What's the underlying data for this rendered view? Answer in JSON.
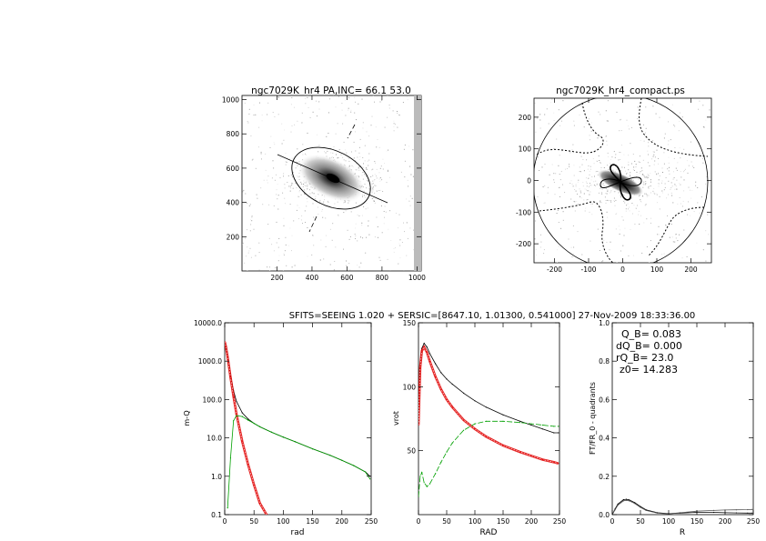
{
  "header": {
    "info_line": "SFITS=SEEING 1.020 + SERSIC=[8647.10, 1.01300, 0.541000]  27-Nov-2009 18:33:36.00"
  },
  "colors": {
    "black": "#000000",
    "red": "#e00000",
    "green": "#00a000",
    "grey": "#555555"
  },
  "chart_data": [
    {
      "id": "image",
      "type": "heatmap",
      "title": "ngc7029K_hr4 PA,INC= 66.1 53.0",
      "x_ticks": [
        "200",
        "400",
        "600",
        "800",
        "1000"
      ],
      "y_ticks": [
        "200",
        "400",
        "600",
        "800",
        "1000"
      ],
      "xlim": [
        0,
        1024
      ],
      "ylim": [
        0,
        1024
      ],
      "ellipse": {
        "center": [
          512,
          540
        ],
        "pa_deg": 66.1,
        "inc_deg": 53.0
      }
    },
    {
      "id": "compact",
      "type": "heatmap",
      "title": "ngc7029K_hr4_compact.ps",
      "x_ticks": [
        "-200",
        "-100",
        "0",
        "100",
        "200"
      ],
      "y_ticks": [
        "-200",
        "-100",
        "0",
        "100",
        "200"
      ],
      "xlim": [
        -260,
        260
      ],
      "ylim": [
        -260,
        260
      ],
      "circle_radius": 250
    },
    {
      "id": "mass",
      "type": "line",
      "xlabel": "rad",
      "ylabel": "m-Q",
      "xlim": [
        0,
        250
      ],
      "ylim": [
        0.1,
        10000
      ],
      "yscale": "log",
      "x_ticks": [
        "0",
        "50",
        "100",
        "150",
        "200",
        "250"
      ],
      "y_ticks": [
        "0.1",
        "1.0",
        "10.0",
        "100.0",
        "1000.0",
        "10000.0"
      ],
      "x": [
        0,
        2,
        5,
        10,
        15,
        20,
        30,
        40,
        50,
        60,
        80,
        100,
        120,
        150,
        180,
        200,
        220,
        240,
        248
      ],
      "series": [
        {
          "color": "#000000",
          "values": [
            3200,
            2400,
            1300,
            420,
            170,
            90,
            45,
            31,
            24,
            19.5,
            14,
            10.5,
            8,
            5.2,
            3.5,
            2.6,
            1.9,
            1.3,
            1.0
          ]
        },
        {
          "color": "#e00000",
          "values": [
            3200,
            2400,
            1300,
            380,
            120,
            42,
            8,
            2.0,
            0.6,
            0.2,
            0.06,
            null,
            null,
            null,
            null,
            null,
            null,
            null,
            null
          ]
        },
        {
          "color": "#00a000",
          "values": [
            null,
            null,
            0.15,
            3,
            28,
            38,
            36,
            29,
            24,
            19.5,
            14,
            10.5,
            8,
            5.2,
            3.5,
            2.6,
            1.9,
            1.3,
            0.85
          ]
        }
      ]
    },
    {
      "id": "vrot",
      "type": "line",
      "xlabel": "RAD",
      "ylabel": "vrot",
      "xlim": [
        0,
        250
      ],
      "ylim": [
        0,
        150
      ],
      "x_ticks": [
        "0",
        "50",
        "100",
        "150",
        "200",
        "250"
      ],
      "y_ticks": [
        "50",
        "100",
        "150"
      ],
      "x": [
        0,
        3,
        6,
        10,
        15,
        20,
        30,
        40,
        50,
        60,
        80,
        100,
        120,
        150,
        180,
        200,
        220,
        240,
        248
      ],
      "series": [
        {
          "color": "#000000",
          "values": [
            78,
            118,
            130,
            134,
            131,
            126,
            118,
            111,
            106,
            102,
            95,
            89,
            84,
            78,
            73,
            70,
            67,
            64,
            64
          ]
        },
        {
          "color": "#e00000",
          "values": [
            70,
            115,
            128,
            131,
            127,
            120,
            108,
            98,
            90,
            84,
            74,
            67,
            61,
            54,
            49,
            46,
            43,
            41,
            40
          ]
        },
        {
          "color": "#00a000",
          "values": [
            14,
            30,
            33,
            25,
            22,
            24,
            32,
            41,
            49,
            56,
            66,
            71,
            73,
            73,
            72,
            71,
            70,
            69,
            69
          ]
        }
      ]
    },
    {
      "id": "ft",
      "type": "line",
      "xlabel": "R",
      "ylabel": "FT/FR_0 - quadrants",
      "xlim": [
        0,
        250
      ],
      "ylim": [
        0,
        1.0
      ],
      "x_ticks": [
        "0",
        "50",
        "100",
        "150",
        "200",
        "250"
      ],
      "y_ticks": [
        "0.0",
        "0.2",
        "0.4",
        "0.6",
        "0.8",
        "1.0"
      ],
      "annotations": [
        "Q_B=  0.083",
        "dQ_B=  0.000",
        "rQ_B=   23.0",
        "z0= 14.283"
      ],
      "x": [
        0,
        5,
        10,
        20,
        25,
        30,
        40,
        50,
        60,
        80,
        100,
        120,
        150,
        180,
        200,
        220,
        240,
        248
      ],
      "series": [
        {
          "color": "#000000",
          "values": [
            0.0,
            0.03,
            0.055,
            0.078,
            0.08,
            0.077,
            0.062,
            0.042,
            0.025,
            0.01,
            0.005,
            0.008,
            0.012,
            0.012,
            0.01,
            0.009,
            0.008,
            0.008
          ]
        },
        {
          "color": "#555555",
          "values": [
            0.0,
            0.025,
            0.05,
            0.072,
            0.075,
            0.072,
            0.058,
            0.038,
            0.022,
            0.008,
            0.004,
            0.01,
            0.018,
            0.022,
            0.024,
            0.025,
            0.026,
            0.027
          ]
        }
      ]
    }
  ]
}
